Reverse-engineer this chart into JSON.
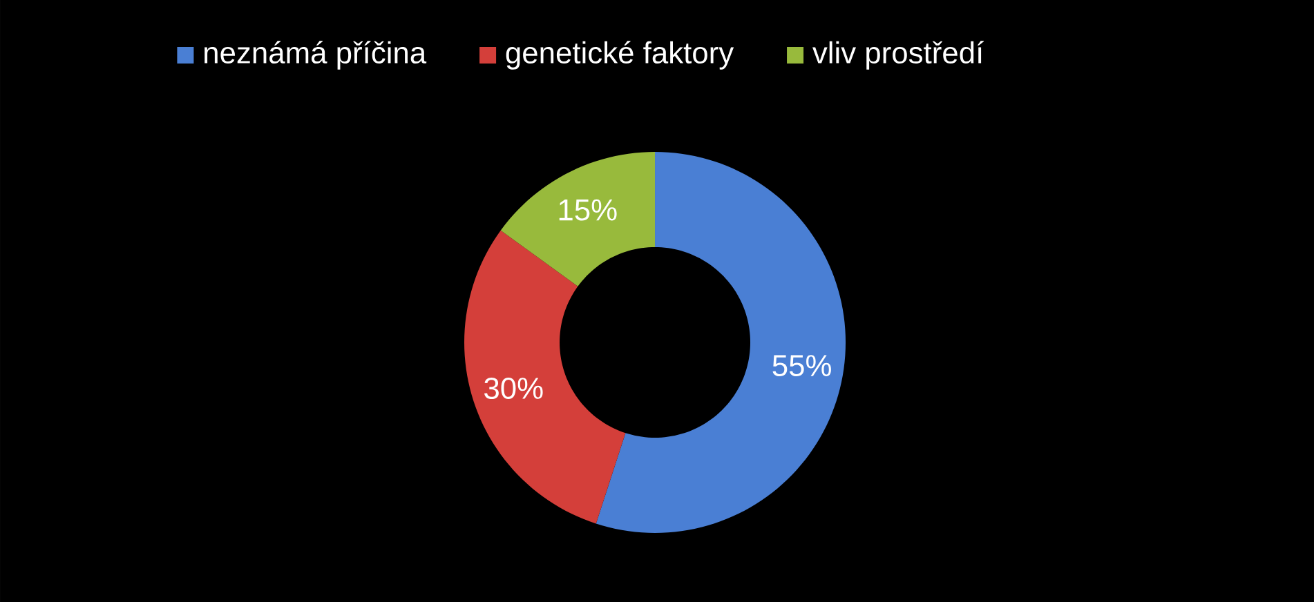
{
  "chart_data": {
    "type": "donut",
    "categories": [
      "neznámá příčina",
      "genetické faktory",
      "vliv prostředí"
    ],
    "values": [
      55,
      30,
      15
    ],
    "colors": [
      "#4a7fd4",
      "#d43f3a",
      "#98ba3c"
    ],
    "value_labels": [
      "55%",
      "30%",
      "15%"
    ],
    "legend": "top"
  }
}
